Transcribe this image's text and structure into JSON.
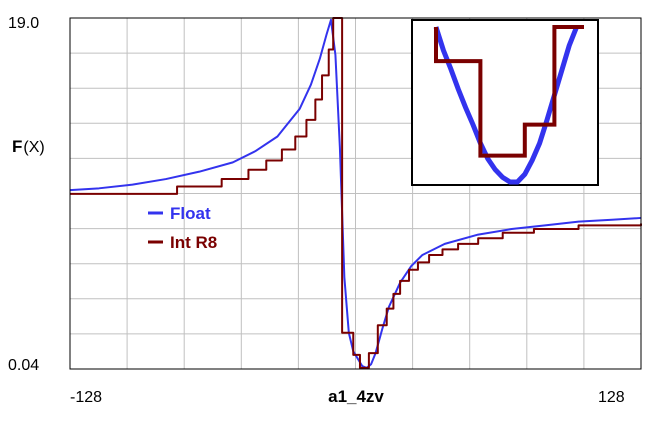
{
  "colors": {
    "background": "#ffffff",
    "grid": "#c0c0c0",
    "axis": "#000000",
    "float_series": "#3333ee",
    "int_series": "#7a0000"
  },
  "chart_data": {
    "type": "line",
    "title": "",
    "xlabel": "a1_4zv",
    "ylabel_prefix": "F",
    "ylabel_suffix": "(X)",
    "xlim": [
      -128,
      128
    ],
    "ylim": [
      0.04,
      19.0
    ],
    "x_tick_labels": [
      "-128",
      "128"
    ],
    "y_tick_labels": [
      "19.0",
      "0.04"
    ],
    "grid": true,
    "grid_divisions": {
      "x": 10,
      "y": 10
    },
    "legend": {
      "placement": "center-left",
      "entries": [
        "Float",
        "Int R8"
      ]
    },
    "series": [
      {
        "name": "Float",
        "color": "#3333ee",
        "style": "smooth",
        "points": [
          [
            -128,
            9.7
          ],
          [
            -115,
            9.8
          ],
          [
            -100,
            10.0
          ],
          [
            -85,
            10.3
          ],
          [
            -70,
            10.7
          ],
          [
            -55,
            11.2
          ],
          [
            -45,
            11.8
          ],
          [
            -35,
            12.6
          ],
          [
            -25,
            14.1
          ],
          [
            -20,
            15.4
          ],
          [
            -16,
            16.8
          ],
          [
            -13,
            18.1
          ],
          [
            -11,
            18.9
          ],
          [
            -9,
            17.0
          ],
          [
            -7,
            12.0
          ],
          [
            -5,
            5.0
          ],
          [
            -3,
            2.0
          ],
          [
            -1,
            1.0
          ],
          [
            1,
            0.6
          ],
          [
            3,
            0.2
          ],
          [
            5,
            0.1
          ],
          [
            7,
            0.3
          ],
          [
            9,
            0.9
          ],
          [
            12,
            2.2
          ],
          [
            15,
            3.4
          ],
          [
            20,
            4.7
          ],
          [
            25,
            5.6
          ],
          [
            30,
            6.2
          ],
          [
            40,
            6.8
          ],
          [
            55,
            7.3
          ],
          [
            70,
            7.6
          ],
          [
            85,
            7.8
          ],
          [
            100,
            8.0
          ],
          [
            115,
            8.1
          ],
          [
            128,
            8.2
          ]
        ]
      },
      {
        "name": "Int R8",
        "color": "#7a0000",
        "style": "step",
        "points": [
          [
            -128,
            9.5
          ],
          [
            -80,
            9.9
          ],
          [
            -60,
            10.3
          ],
          [
            -48,
            10.8
          ],
          [
            -40,
            11.3
          ],
          [
            -33,
            11.9
          ],
          [
            -27,
            12.6
          ],
          [
            -22,
            13.5
          ],
          [
            -18,
            14.6
          ],
          [
            -15,
            15.9
          ],
          [
            -12,
            17.3
          ],
          [
            -10,
            19.0
          ],
          [
            -6,
            2.0
          ],
          [
            -1,
            0.8
          ],
          [
            2,
            0.1
          ],
          [
            6,
            0.9
          ],
          [
            10,
            2.4
          ],
          [
            14,
            3.3
          ],
          [
            17,
            4.1
          ],
          [
            20,
            4.8
          ],
          [
            24,
            5.4
          ],
          [
            28,
            5.8
          ],
          [
            33,
            6.2
          ],
          [
            39,
            6.5
          ],
          [
            46,
            6.8
          ],
          [
            55,
            7.1
          ],
          [
            66,
            7.4
          ],
          [
            80,
            7.6
          ],
          [
            100,
            7.8
          ],
          [
            128,
            7.9
          ]
        ]
      }
    ],
    "inset": {
      "type": "line",
      "series": [
        {
          "name": "Float",
          "color": "#3333ee",
          "points": [
            [
              0,
              100
            ],
            [
              0.05,
              85
            ],
            [
              0.1,
              73
            ],
            [
              0.15,
              60
            ],
            [
              0.2,
              48
            ],
            [
              0.25,
              37
            ],
            [
              0.3,
              25
            ],
            [
              0.35,
              15
            ],
            [
              0.4,
              8
            ],
            [
              0.45,
              3
            ],
            [
              0.5,
              0
            ],
            [
              0.55,
              0
            ],
            [
              0.6,
              5
            ],
            [
              0.65,
              14
            ],
            [
              0.7,
              25
            ],
            [
              0.75,
              40
            ],
            [
              0.8,
              56
            ],
            [
              0.85,
              72
            ],
            [
              0.9,
              88
            ],
            [
              0.95,
              100
            ]
          ]
        },
        {
          "name": "Int R8",
          "color": "#7a0000",
          "points": [
            [
              0,
              100
            ],
            [
              0.0,
              78
            ],
            [
              0.3,
              78
            ],
            [
              0.3,
              17
            ],
            [
              0.6,
              17
            ],
            [
              0.6,
              37
            ],
            [
              0.8,
              37
            ],
            [
              0.8,
              100
            ],
            [
              1.0,
              100
            ]
          ]
        }
      ]
    }
  }
}
